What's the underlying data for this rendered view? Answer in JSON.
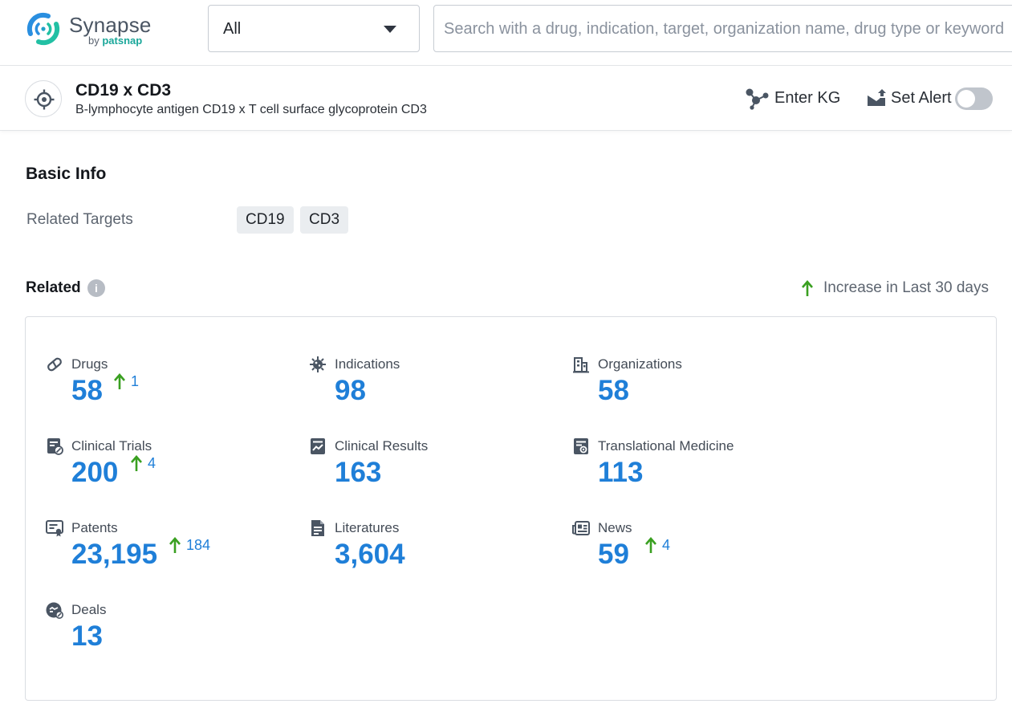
{
  "brand": {
    "name": "Synapse",
    "by_prefix": "by ",
    "by_brand": "patsnap",
    "colors": {
      "teal": "#1aa79a",
      "blue": "#1f7fd8",
      "green": "#3aa021"
    }
  },
  "search": {
    "scope_value": "All",
    "placeholder": "Search with a drug, indication, target, organization name, drug type or keyword"
  },
  "entity": {
    "title": "CD19 x CD3",
    "subtitle": "B-lymphocyte antigen CD19 x T cell surface glycoprotein CD3",
    "enter_kg_label": "Enter KG",
    "set_alert_label": "Set Alert",
    "alert_enabled": false
  },
  "basic_info": {
    "title": "Basic Info",
    "related_targets_label": "Related Targets",
    "related_targets": [
      "CD19",
      "CD3"
    ]
  },
  "related": {
    "title": "Related",
    "info_icon": "i",
    "legend": "Increase in Last 30 days",
    "stats": [
      {
        "name": "Drugs",
        "icon": "pill-icon",
        "value": "58",
        "increase": "1"
      },
      {
        "name": "Indications",
        "icon": "virus-icon",
        "value": "98",
        "increase": ""
      },
      {
        "name": "Organizations",
        "icon": "building-icon",
        "value": "58",
        "increase": ""
      },
      {
        "name": "Clinical Trials",
        "icon": "clinical-trial-icon",
        "value": "200",
        "increase": "4"
      },
      {
        "name": "Clinical Results",
        "icon": "chart-document-icon",
        "value": "163",
        "increase": ""
      },
      {
        "name": "Translational Medicine",
        "icon": "translational-medicine-icon",
        "value": "113",
        "increase": ""
      },
      {
        "name": "Patents",
        "icon": "patent-icon",
        "value": "23,195",
        "increase": "184"
      },
      {
        "name": "Literatures",
        "icon": "literature-icon",
        "value": "3,604",
        "increase": ""
      },
      {
        "name": "News",
        "icon": "news-icon",
        "value": "59",
        "increase": "4"
      },
      {
        "name": "Deals",
        "icon": "deals-icon",
        "value": "13",
        "increase": ""
      }
    ]
  }
}
